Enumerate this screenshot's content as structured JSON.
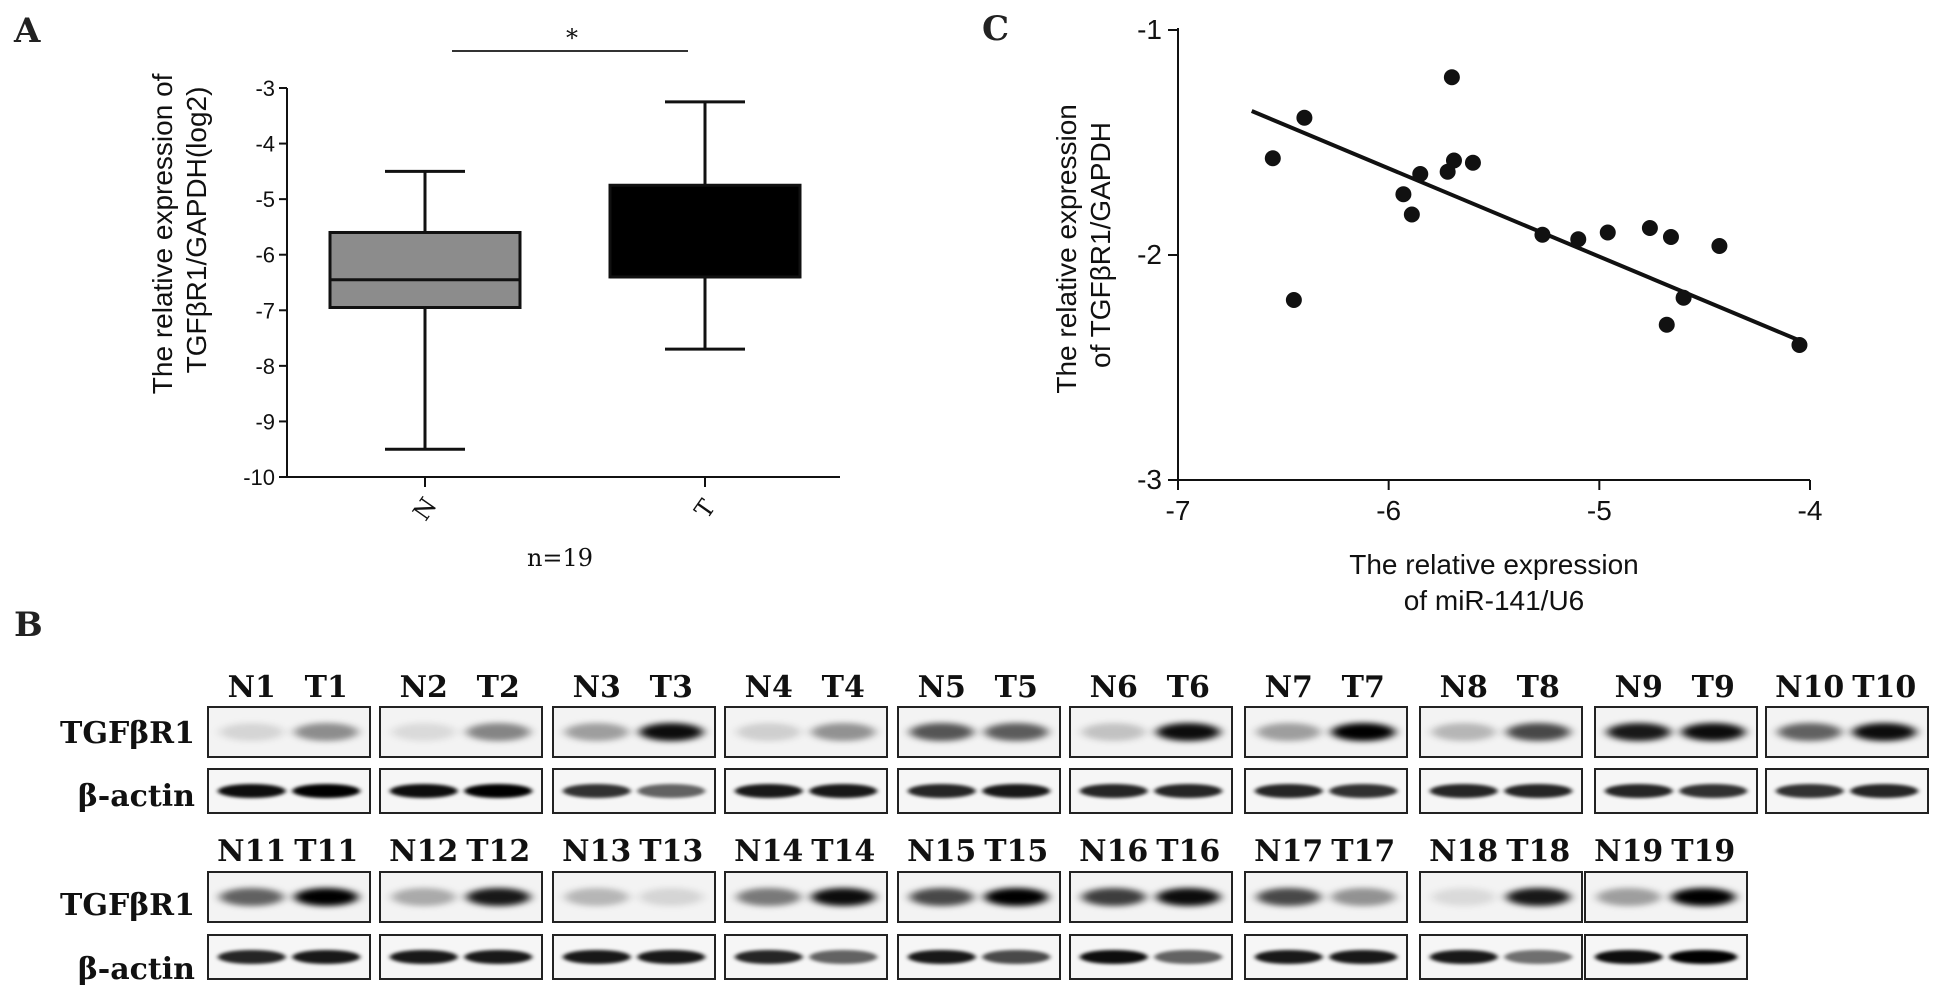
{
  "panels": {
    "a": "A",
    "b": "B",
    "c": "C"
  },
  "colors": {
    "box_n": "#8c8c8c",
    "box_t": "#000000",
    "ink": "#111111"
  },
  "chart_data": [
    {
      "type": "box",
      "panel": "A",
      "title": "",
      "ylabel": [
        "The relative expression of",
        "TGFβR1/GAPDH(log2)"
      ],
      "xlabel": "",
      "ylim": [
        -10,
        -3
      ],
      "yticks": [
        -3,
        -4,
        -5,
        -6,
        -7,
        -8,
        -9,
        -10
      ],
      "categories": [
        "N",
        "T"
      ],
      "boxes": [
        {
          "name": "N",
          "min": -9.5,
          "q1": -6.95,
          "median": -6.45,
          "q3": -5.6,
          "max": -4.5
        },
        {
          "name": "T",
          "min": -7.7,
          "q1": -6.4,
          "median": -6.4,
          "q3": -4.75,
          "max": -3.25
        }
      ],
      "significance": "*",
      "sample_note": "n=19"
    },
    {
      "type": "scatter",
      "panel": "C",
      "title": "",
      "xlabel": [
        "The relative expression",
        "of miR-141/U6"
      ],
      "ylabel": [
        "The relative expression",
        "of TGFβR1/GAPDH"
      ],
      "xlim": [
        -7,
        -4
      ],
      "ylim": [
        -3,
        -1
      ],
      "xticks": [
        -7,
        -6,
        -5,
        -4
      ],
      "yticks": [
        -1,
        -2,
        -3
      ],
      "points": [
        {
          "x": -6.55,
          "y": -1.57
        },
        {
          "x": -6.45,
          "y": -2.2
        },
        {
          "x": -6.4,
          "y": -1.39
        },
        {
          "x": -5.93,
          "y": -1.73
        },
        {
          "x": -5.89,
          "y": -1.82
        },
        {
          "x": -5.85,
          "y": -1.64
        },
        {
          "x": -5.72,
          "y": -1.63
        },
        {
          "x": -5.7,
          "y": -1.21
        },
        {
          "x": -5.69,
          "y": -1.58
        },
        {
          "x": -5.6,
          "y": -1.59
        },
        {
          "x": -5.27,
          "y": -1.91
        },
        {
          "x": -5.1,
          "y": -1.93
        },
        {
          "x": -4.96,
          "y": -1.9
        },
        {
          "x": -4.76,
          "y": -1.88
        },
        {
          "x": -4.68,
          "y": -2.31
        },
        {
          "x": -4.66,
          "y": -1.92
        },
        {
          "x": -4.6,
          "y": -2.19
        },
        {
          "x": -4.43,
          "y": -1.96
        },
        {
          "x": -4.05,
          "y": -2.4
        }
      ],
      "fit_line": {
        "x": [
          -6.65,
          -4.05
        ],
        "y": [
          -1.36,
          -2.38
        ]
      }
    }
  ],
  "blot": {
    "row_labels": {
      "target": "TGFβR1",
      "loading": "β-actin"
    },
    "rows": [
      {
        "pairs": [
          {
            "n": "N1",
            "t": "T1",
            "target": [
              0.12,
              0.42
            ],
            "loading": [
              0.95,
              1.0
            ]
          },
          {
            "n": "N2",
            "t": "T2",
            "target": [
              0.1,
              0.45
            ],
            "loading": [
              0.95,
              1.0
            ]
          },
          {
            "n": "N3",
            "t": "T3",
            "target": [
              0.35,
              0.95
            ],
            "loading": [
              0.8,
              0.6
            ]
          },
          {
            "n": "N4",
            "t": "T4",
            "target": [
              0.15,
              0.4
            ],
            "loading": [
              0.9,
              0.9
            ]
          },
          {
            "n": "N5",
            "t": "T5",
            "target": [
              0.65,
              0.62
            ],
            "loading": [
              0.85,
              0.9
            ]
          },
          {
            "n": "N6",
            "t": "T6",
            "target": [
              0.2,
              0.95
            ],
            "loading": [
              0.85,
              0.85
            ]
          },
          {
            "n": "N7",
            "t": "T7",
            "target": [
              0.35,
              1.0
            ],
            "loading": [
              0.85,
              0.8
            ]
          },
          {
            "n": "N8",
            "t": "T8",
            "target": [
              0.25,
              0.7
            ],
            "loading": [
              0.85,
              0.85
            ]
          },
          {
            "n": "N9",
            "t": "T9",
            "target": [
              0.9,
              0.95
            ],
            "loading": [
              0.85,
              0.8
            ]
          },
          {
            "n": "N10",
            "t": "T10",
            "target": [
              0.6,
              0.95
            ],
            "loading": [
              0.8,
              0.85
            ]
          }
        ]
      },
      {
        "pairs": [
          {
            "n": "N11",
            "t": "T11",
            "target": [
              0.6,
              1.0
            ],
            "loading": [
              0.85,
              0.9
            ]
          },
          {
            "n": "N12",
            "t": "T12",
            "target": [
              0.3,
              0.9
            ],
            "loading": [
              0.9,
              0.9
            ]
          },
          {
            "n": "N13",
            "t": "T13",
            "target": [
              0.25,
              0.12
            ],
            "loading": [
              0.9,
              0.9
            ]
          },
          {
            "n": "N14",
            "t": "T14",
            "target": [
              0.5,
              0.95
            ],
            "loading": [
              0.85,
              0.6
            ]
          },
          {
            "n": "N15",
            "t": "T15",
            "target": [
              0.7,
              1.0
            ],
            "loading": [
              0.9,
              0.7
            ]
          },
          {
            "n": "N16",
            "t": "T16",
            "target": [
              0.75,
              0.95
            ],
            "loading": [
              0.95,
              0.6
            ]
          },
          {
            "n": "N17",
            "t": "T17",
            "target": [
              0.7,
              0.4
            ],
            "loading": [
              0.9,
              0.9
            ]
          },
          {
            "n": "N18",
            "t": "T18",
            "target": [
              0.1,
              0.9
            ],
            "loading": [
              0.9,
              0.55
            ]
          },
          {
            "n": "N19",
            "t": "T19",
            "target": [
              0.35,
              1.0
            ],
            "loading": [
              0.95,
              1.0
            ]
          }
        ]
      }
    ]
  }
}
